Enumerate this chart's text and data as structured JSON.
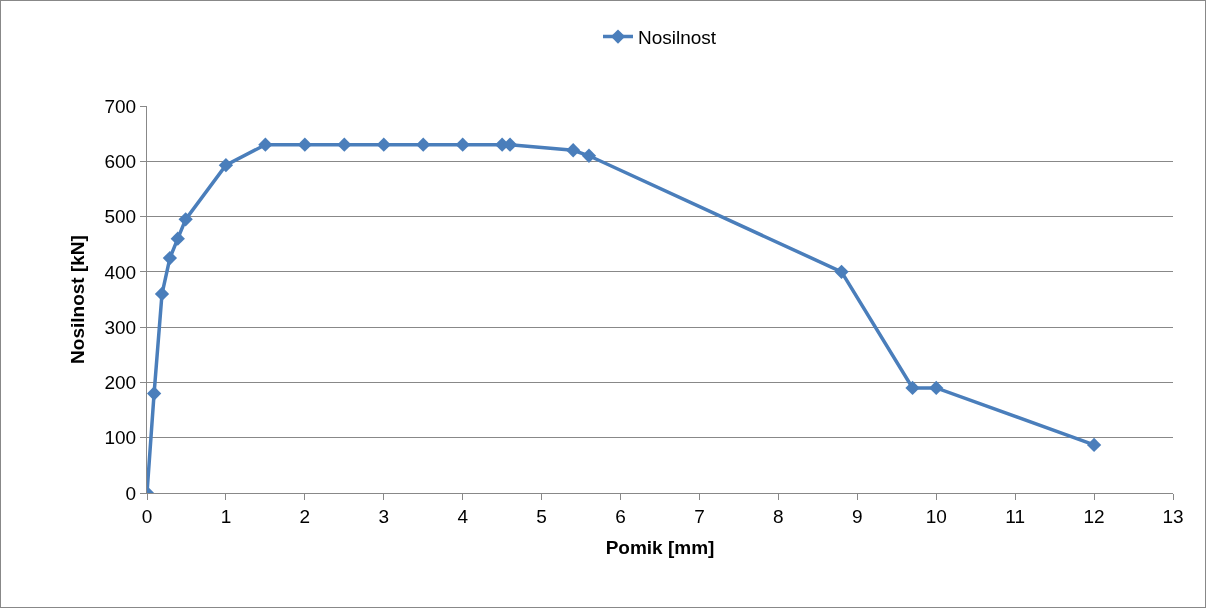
{
  "chart_data": {
    "type": "line",
    "xlabel": "Pomik [mm]",
    "ylabel": "Nosilnost [kN]",
    "x": [
      0,
      0.09,
      0.19,
      0.29,
      0.39,
      0.49,
      1,
      1.5,
      2,
      2.5,
      3,
      3.5,
      4,
      4.5,
      4.6,
      5.4,
      5.6,
      8.8,
      9.7,
      10,
      12
    ],
    "series": [
      {
        "name": "Nosilnost",
        "color": "#4a7ebb",
        "values": [
          0,
          180,
          360,
          425,
          460,
          495,
          593,
          630,
          630,
          630,
          630,
          630,
          630,
          630,
          630,
          620,
          610,
          400,
          190,
          190,
          87
        ]
      }
    ],
    "xlim": [
      0,
      13
    ],
    "xticks": [
      0,
      1,
      2,
      3,
      4,
      5,
      6,
      7,
      8,
      9,
      10,
      11,
      12,
      13
    ],
    "ylim": [
      0,
      700
    ],
    "yticks": [
      0,
      100,
      200,
      300,
      400,
      500,
      600,
      700
    ],
    "grid": "y",
    "legend": "top",
    "marker": "diamond",
    "line_style": "solid"
  }
}
